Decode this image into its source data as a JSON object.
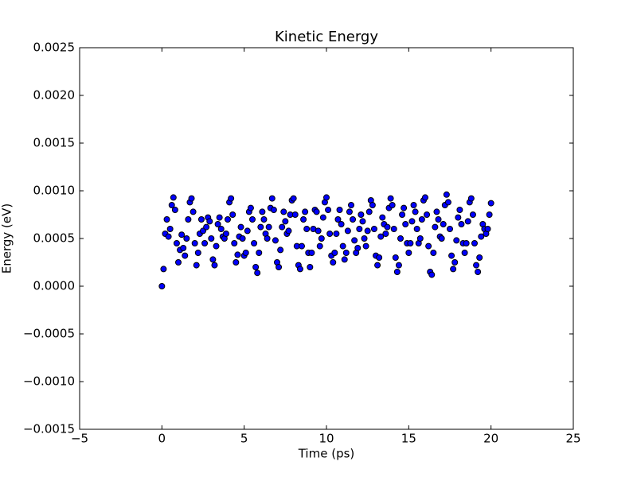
{
  "chart_data": {
    "type": "scatter",
    "title": "Kinetic Energy",
    "x_label": "Time (ps)",
    "y_label": "Energy (eV)",
    "xlim": [
      -5,
      25
    ],
    "ylim": [
      -0.0015,
      0.0025
    ],
    "xticks": [
      {
        "value": -5,
        "label": "−5"
      },
      0,
      5,
      10,
      15,
      20,
      25
    ],
    "yticks": [
      {
        "value": -0.0015,
        "label": "−0.0015"
      },
      {
        "value": -0.001,
        "label": "−0.0010"
      },
      {
        "value": -0.0005,
        "label": "−0.0005"
      },
      {
        "value": 0,
        "label": "0.0000"
      },
      0.0005,
      {
        "value": 0.001,
        "label": "0.0010"
      },
      0.0015,
      {
        "value": 0.002,
        "label": "0.0020"
      },
      0.0025
    ],
    "color": "#0000ff",
    "edge_color": "#000000",
    "x": [
      0,
      0.1,
      0.2,
      0.3,
      0.4,
      0.5,
      0.6,
      0.7,
      0.8,
      0.9,
      1,
      1.1,
      1.2,
      1.3,
      1.4,
      1.5,
      1.6,
      1.7,
      1.8,
      1.9,
      2,
      2.1,
      2.2,
      2.3,
      2.4,
      2.5,
      2.6,
      2.7,
      2.8,
      2.9,
      3,
      3.1,
      3.2,
      3.3,
      3.4,
      3.5,
      3.6,
      3.7,
      3.8,
      3.9,
      4,
      4.1,
      4.2,
      4.3,
      4.4,
      4.5,
      4.6,
      4.7,
      4.8,
      4.9,
      5,
      5.1,
      5.2,
      5.3,
      5.4,
      5.5,
      5.6,
      5.7,
      5.8,
      5.9,
      6,
      6.1,
      6.2,
      6.3,
      6.4,
      6.5,
      6.6,
      6.7,
      6.8,
      6.9,
      7,
      7.1,
      7.2,
      7.3,
      7.4,
      7.5,
      7.6,
      7.7,
      7.8,
      7.9,
      8,
      8.1,
      8.2,
      8.3,
      8.4,
      8.5,
      8.6,
      8.7,
      8.8,
      8.9,
      9,
      9.1,
      9.2,
      9.3,
      9.4,
      9.5,
      9.6,
      9.7,
      9.8,
      9.9,
      10,
      10.1,
      10.2,
      10.3,
      10.4,
      10.5,
      10.6,
      10.7,
      10.8,
      10.9,
      11,
      11.1,
      11.2,
      11.3,
      11.4,
      11.5,
      11.6,
      11.7,
      11.8,
      11.9,
      12,
      12.1,
      12.2,
      12.3,
      12.4,
      12.5,
      12.6,
      12.7,
      12.8,
      12.9,
      13,
      13.1,
      13.2,
      13.3,
      13.4,
      13.5,
      13.6,
      13.7,
      13.8,
      13.9,
      14,
      14.1,
      14.2,
      14.3,
      14.4,
      14.5,
      14.6,
      14.7,
      14.8,
      14.9,
      15,
      15.1,
      15.2,
      15.3,
      15.4,
      15.5,
      15.6,
      15.7,
      15.8,
      15.9,
      16,
      16.1,
      16.2,
      16.3,
      16.4,
      16.5,
      16.6,
      16.7,
      16.8,
      16.9,
      17,
      17.1,
      17.2,
      17.3,
      17.4,
      17.5,
      17.6,
      17.7,
      17.8,
      17.9,
      18,
      18.1,
      18.2,
      18.3,
      18.4,
      18.5,
      18.6,
      18.7,
      18.8,
      18.9,
      19,
      19.1,
      19.2,
      19.3,
      19.4,
      19.5,
      19.6,
      19.7,
      19.8,
      19.9,
      20
    ],
    "values": [
      0,
      0.00018,
      0.00055,
      0.0007,
      0.00052,
      0.0006,
      0.00085,
      0.00093,
      0.0008,
      0.00045,
      0.00025,
      0.00038,
      0.00054,
      0.0004,
      0.00032,
      0.0005,
      0.0007,
      0.00088,
      0.00092,
      0.00078,
      0.00045,
      0.00022,
      0.00035,
      0.00055,
      0.0007,
      0.00058,
      0.00045,
      0.00062,
      0.00072,
      0.00068,
      0.0005,
      0.00028,
      0.00022,
      0.00042,
      0.00065,
      0.00072,
      0.0006,
      0.00052,
      0.0005,
      0.00055,
      0.0007,
      0.00088,
      0.00092,
      0.00075,
      0.00045,
      0.00025,
      0.00033,
      0.00052,
      0.00062,
      0.0005,
      0.00032,
      0.00035,
      0.00058,
      0.00078,
      0.00082,
      0.0007,
      0.00045,
      0.0002,
      0.00014,
      0.00035,
      0.00062,
      0.00078,
      0.0007,
      0.00055,
      0.0005,
      0.00062,
      0.00082,
      0.00092,
      0.0008,
      0.00048,
      0.00025,
      0.0002,
      0.00038,
      0.00062,
      0.00078,
      0.00068,
      0.00055,
      0.00058,
      0.00075,
      0.0009,
      0.00092,
      0.00075,
      0.00042,
      0.00022,
      0.00018,
      0.00042,
      0.0007,
      0.00078,
      0.0006,
      0.00035,
      0.0002,
      0.00035,
      0.0006,
      0.0008,
      0.00078,
      0.00058,
      0.00042,
      0.0005,
      0.00072,
      0.00088,
      0.00093,
      0.0008,
      0.00055,
      0.00032,
      0.00025,
      0.00035,
      0.00055,
      0.0007,
      0.0008,
      0.00065,
      0.00042,
      0.00028,
      0.00035,
      0.00058,
      0.00078,
      0.00085,
      0.0007,
      0.00048,
      0.00035,
      0.0004,
      0.0006,
      0.00075,
      0.00068,
      0.0005,
      0.00042,
      0.00058,
      0.00078,
      0.0009,
      0.00085,
      0.0006,
      0.00032,
      0.00022,
      0.0003,
      0.00052,
      0.00072,
      0.00065,
      0.00055,
      0.00062,
      0.00082,
      0.00092,
      0.00085,
      0.0006,
      0.0003,
      0.00015,
      0.00022,
      0.0005,
      0.00075,
      0.00082,
      0.00065,
      0.00045,
      0.00035,
      0.00045,
      0.00068,
      0.00085,
      0.00078,
      0.0006,
      0.00045,
      0.0005,
      0.0007,
      0.0009,
      0.00093,
      0.00075,
      0.00042,
      0.00015,
      0.00012,
      0.00035,
      0.00062,
      0.00078,
      0.0007,
      0.00052,
      0.0005,
      0.00065,
      0.00085,
      0.00096,
      0.00088,
      0.0006,
      0.00032,
      0.00018,
      0.00025,
      0.00048,
      0.00072,
      0.0008,
      0.00065,
      0.00045,
      0.00035,
      0.00045,
      0.00068,
      0.00088,
      0.00092,
      0.00075,
      0.00045,
      0.00022,
      0.00015,
      0.0003,
      0.00052,
      0.00065,
      0.0006,
      0.00055,
      0.0006,
      0.00075,
      0.00087
    ]
  }
}
